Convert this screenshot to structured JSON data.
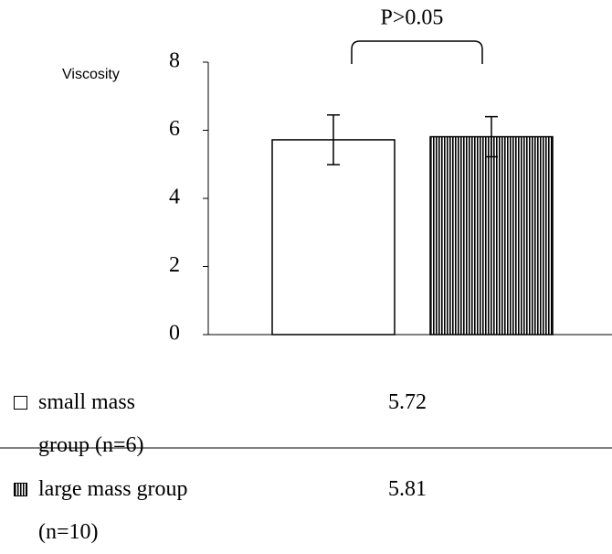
{
  "chart_data": {
    "type": "bar",
    "ylabel": "Viscosity",
    "annotation": "P>0.05",
    "ylim": [
      0,
      8
    ],
    "yticks": [
      0,
      2,
      4,
      6,
      8
    ],
    "series": [
      {
        "name": "small mass group (n=6)",
        "color": "#ffffff",
        "hatch": false,
        "values": [
          5.72
        ],
        "errors": [
          0.73
        ]
      },
      {
        "name": "large mass group (n=10)",
        "color": "#ffffff",
        "hatch": true,
        "values": [
          5.81
        ],
        "errors": [
          0.59
        ]
      }
    ]
  }
}
